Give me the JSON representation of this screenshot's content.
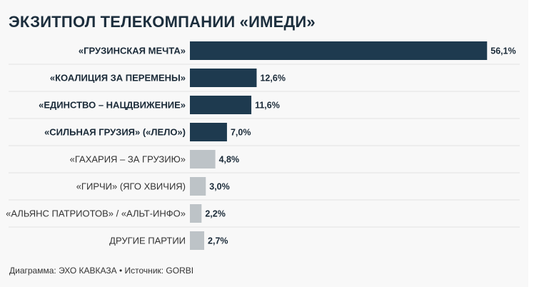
{
  "chart_data": {
    "type": "bar",
    "orientation": "horizontal",
    "title": "ЭКЗИТПОЛ ТЕЛЕКОМПАНИИ «ИМЕДИ»",
    "categories": [
      "«ГРУЗИНСКАЯ МЕЧТА»",
      "«КОАЛИЦИЯ ЗА ПЕРЕМЕНЫ»",
      "«ЕДИНСТВО – НАЦДВИЖЕНИЕ»",
      "«СИЛЬНАЯ ГРУЗИЯ» («ЛЕЛО»)",
      "«ГАХАРИЯ – ЗА ГРУЗИЮ»",
      "«ГИРЧИ» (ЯГО ХВИЧИЯ)",
      "«АЛЬЯНС ПАТРИОТОВ» / «АЛЬТ-ИНФО»",
      "ДРУГИЕ ПАРТИИ"
    ],
    "values": [
      56.1,
      12.6,
      11.6,
      7.0,
      4.8,
      3.0,
      2.2,
      2.7
    ],
    "value_labels": [
      "56,1%",
      "12,6%",
      "11,6%",
      "7,0%",
      "4,8%",
      "3,0%",
      "2,2%",
      "2,7%"
    ],
    "highlighted": [
      true,
      true,
      true,
      true,
      false,
      false,
      false,
      false
    ],
    "colors": {
      "highlight": "#1e3a4f",
      "other": "#bdc3c7",
      "separator": "#e2e2e2"
    },
    "xlabel": "",
    "ylabel": "",
    "grid": false,
    "legend": "none"
  },
  "footer": "Диаграмма: ЭХО КАВКАЗА • Источник: GORBI"
}
